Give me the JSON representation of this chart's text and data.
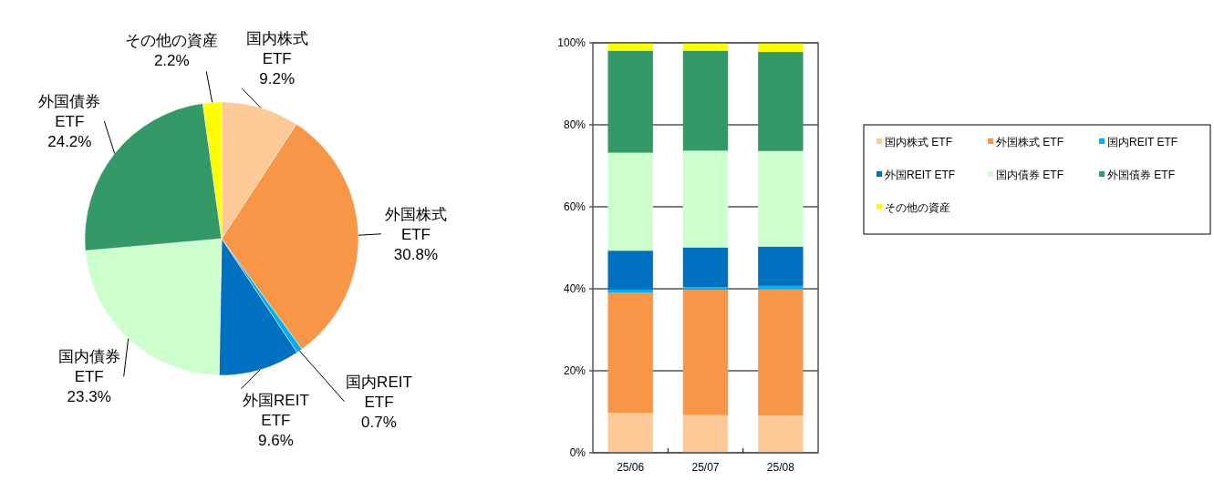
{
  "chart_data": [
    {
      "type": "pie",
      "categories": [
        "国内株式 ETF",
        "外国株式 ETF",
        "国内REIT ETF",
        "外国REIT ETF",
        "国内債券 ETF",
        "外国債券 ETF",
        "その他の資産"
      ],
      "values": [
        9.2,
        30.8,
        0.7,
        9.6,
        23.3,
        24.2,
        2.2
      ],
      "value_labels": [
        "9.2%",
        "30.8%",
        "0.7%",
        "9.6%",
        "23.3%",
        "24.2%",
        "2.2%"
      ],
      "colors": [
        "#fdc997",
        "#f79646",
        "#00b0f0",
        "#0070c0",
        "#ccffcc",
        "#339966",
        "#ffff00"
      ]
    },
    {
      "type": "bar",
      "stacked": true,
      "categories": [
        "25/06",
        "25/07",
        "25/08"
      ],
      "series": [
        {
          "name": "国内株式 ETF",
          "color": "#fdc997",
          "values": [
            9.7,
            9.2,
            9.1
          ]
        },
        {
          "name": "外国株式 ETF",
          "color": "#f79646",
          "values": [
            29.4,
            30.6,
            30.8
          ]
        },
        {
          "name": "国内REIT ETF",
          "color": "#00b0f0",
          "values": [
            0.7,
            0.6,
            0.8
          ]
        },
        {
          "name": "外国REIT ETF",
          "color": "#0070c0",
          "values": [
            9.5,
            9.7,
            9.6
          ]
        },
        {
          "name": "国内債券 ETF",
          "color": "#ccffcc",
          "values": [
            23.9,
            23.6,
            23.3
          ]
        },
        {
          "name": "外国債券 ETF",
          "color": "#339966",
          "values": [
            24.9,
            24.4,
            24.2
          ]
        },
        {
          "name": "その他の資産",
          "color": "#ffff00",
          "values": [
            1.9,
            1.9,
            2.2
          ]
        }
      ],
      "ylim": [
        0,
        100
      ],
      "yticks": [
        {
          "value": 0,
          "label": "0%"
        },
        {
          "value": 20,
          "label": "20%"
        },
        {
          "value": 40,
          "label": "40%"
        },
        {
          "value": 60,
          "label": "60%"
        },
        {
          "value": 80,
          "label": "80%"
        },
        {
          "value": 100,
          "label": "100%"
        }
      ],
      "grid": "y",
      "legend": "right"
    }
  ]
}
